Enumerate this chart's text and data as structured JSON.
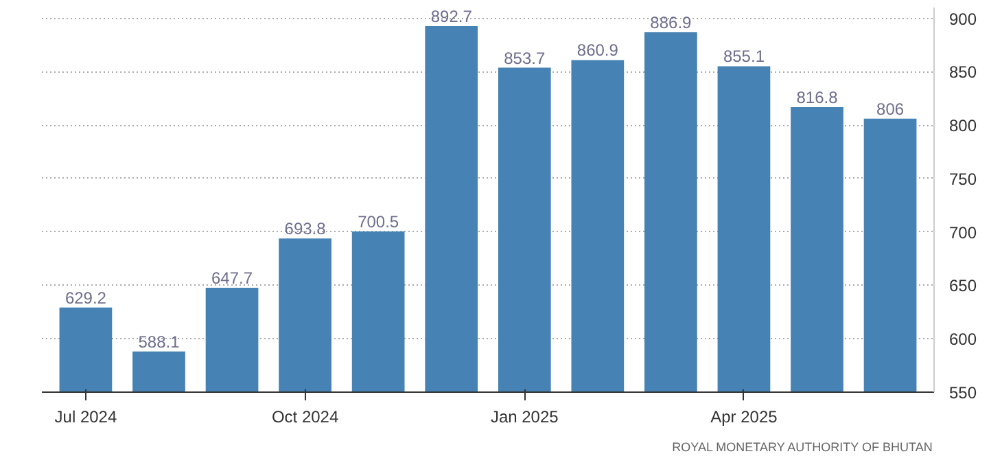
{
  "chart_data": {
    "type": "bar",
    "categories": [
      "Jul 2024",
      null,
      null,
      "Oct 2024",
      null,
      null,
      "Jan 2025",
      null,
      null,
      "Apr 2025",
      null,
      null
    ],
    "values": [
      629.2,
      588.1,
      647.7,
      693.8,
      700.5,
      892.7,
      853.7,
      860.9,
      886.9,
      855.1,
      816.8,
      806
    ],
    "value_labels": [
      "629.2",
      "588.1",
      "647.7",
      "693.8",
      "700.5",
      "892.7",
      "853.7",
      "860.9",
      "886.9",
      "855.1",
      "816.8",
      "806"
    ],
    "color": "#4682b4",
    "ylim": [
      550,
      910
    ],
    "yticks": [
      550,
      600,
      650,
      700,
      750,
      800,
      850,
      900
    ],
    "grid": "y",
    "annotations": [
      "ROYAL MONETARY AUTHORITY OF BHUTAN"
    ]
  }
}
